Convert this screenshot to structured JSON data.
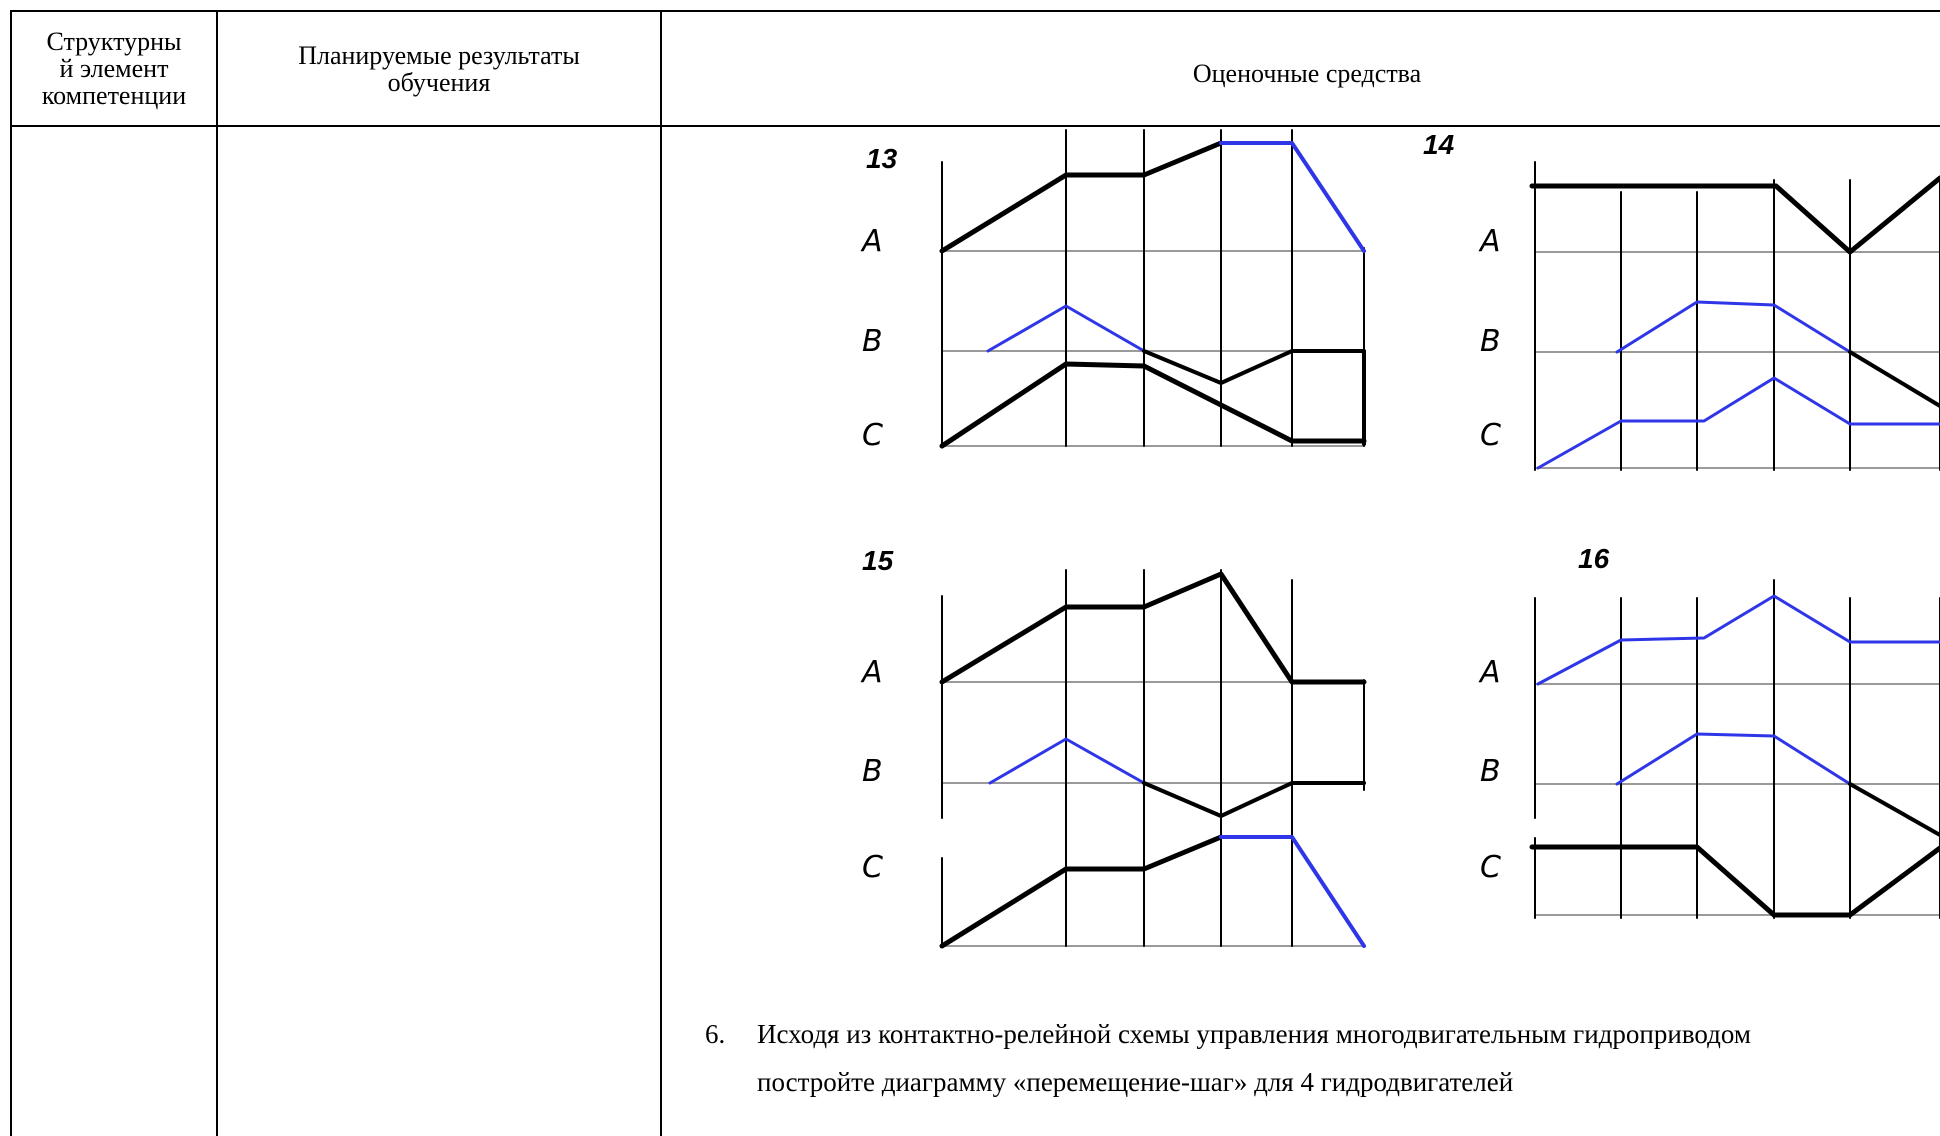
{
  "table": {
    "headers": {
      "col1": "Структурный элемент компетенции",
      "col1_lines": [
        "Структурны",
        "й элемент",
        "компетенции"
      ],
      "col2_lines": [
        "Планируемые результаты",
        "обучения"
      ],
      "col3": "Оценочные средства"
    }
  },
  "diagrams": [
    {
      "number": "13",
      "labels": [
        "A",
        "B",
        "C"
      ]
    },
    {
      "number": "14",
      "labels": [
        "A",
        "B",
        "C"
      ]
    },
    {
      "number": "15",
      "labels": [
        "A",
        "B",
        "C"
      ]
    },
    {
      "number": "16",
      "labels": [
        "A",
        "B",
        "C"
      ]
    }
  ],
  "task": {
    "number": "6.",
    "line1": "Исходя из контактно-релейной схемы управления многодвигательным гидроприводом",
    "line2": "постройте диаграмму «перемещение-шаг» для 4 гидродвигателей"
  },
  "colors": {
    "line_black": "#000000",
    "line_blue": "#2e36e8",
    "axis_gray": "#9a9a9a"
  }
}
